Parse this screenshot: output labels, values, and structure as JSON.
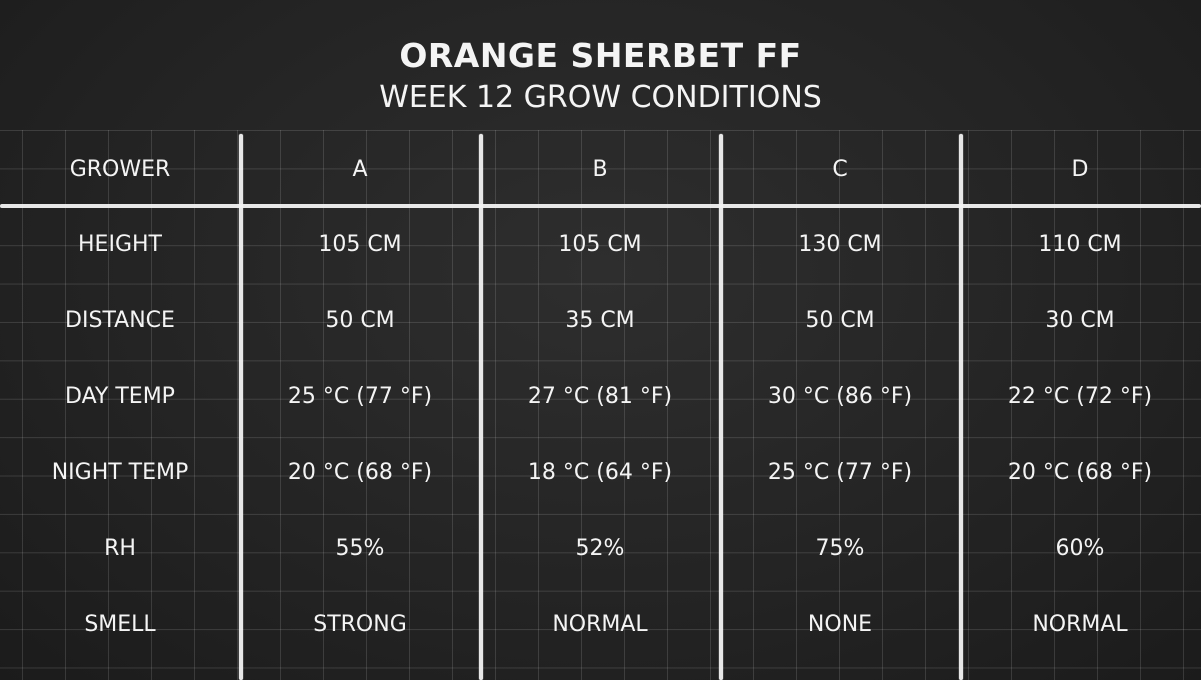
{
  "title": "ORANGE SHERBET FF",
  "subtitle": "WEEK 12 GROW CONDITIONS",
  "table": {
    "header": [
      "GROWER",
      "A",
      "B",
      "C",
      "D"
    ],
    "rows": [
      [
        "HEIGHT",
        "105 CM",
        "105 CM",
        "130 CM",
        "110 CM"
      ],
      [
        "DISTANCE",
        "50 CM",
        "35 CM",
        "50 CM",
        "30 CM"
      ],
      [
        "DAY TEMP",
        "25 °C (77 °F)",
        "27 °C (81 °F)",
        "30 °C (86 °F)",
        "22 °C (72 °F)"
      ],
      [
        "NIGHT TEMP",
        "20 °C (68 °F)",
        "18 °C (64 °F)",
        "25 °C (77 °F)",
        "20 °C (68 °F)"
      ],
      [
        "RH",
        "55%",
        "52%",
        "75%",
        "60%"
      ],
      [
        "SMELL",
        "STRONG",
        "NORMAL",
        "NONE",
        "NORMAL"
      ]
    ]
  }
}
